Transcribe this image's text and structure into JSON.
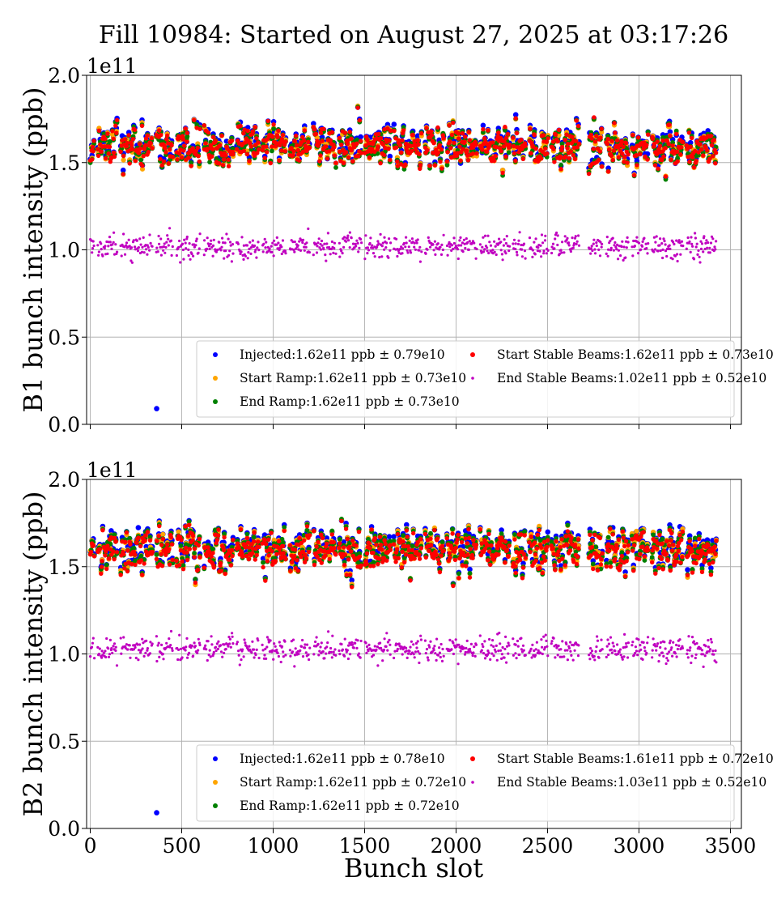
{
  "figure": {
    "title": "Fill 10984: Started on August 27, 2025 at 03:17:26",
    "xlabel": "Bunch slot"
  },
  "colors": {
    "injected": "#0000ff",
    "start_ramp": "#ffa500",
    "end_ramp": "#008000",
    "start_stable": "#ff0000",
    "end_stable": "#c000c0",
    "grid": "#b0b0b0"
  },
  "chart_data": [
    {
      "type": "scatter",
      "id": "b1",
      "ylabel": "B1 bunch intensity (ppb)",
      "yexp": "1e11",
      "xlim": [
        -20,
        3560
      ],
      "ylim": [
        0.0,
        2.0
      ],
      "xticks": [
        0,
        500,
        1000,
        1500,
        2000,
        2500,
        3000,
        3500
      ],
      "yticks": [
        0.0,
        0.5,
        1.0,
        1.5,
        2.0
      ],
      "ytick_labels": [
        "0.0",
        "0.5",
        "1.0",
        "1.5",
        "2.0"
      ],
      "show_xtick_labels": false,
      "grid": true,
      "legend_position": "lower right",
      "trains_x": [
        [
          0,
          20
        ],
        [
          40,
          145
        ],
        [
          165,
          340
        ],
        [
          360,
          450
        ],
        [
          470,
          600
        ],
        [
          620,
          780
        ],
        [
          800,
          920
        ],
        [
          940,
          1070
        ],
        [
          1090,
          1200
        ],
        [
          1220,
          1340
        ],
        [
          1360,
          1480
        ],
        [
          1500,
          1640
        ],
        [
          1660,
          1810
        ],
        [
          1830,
          1930
        ],
        [
          1950,
          2110
        ],
        [
          2130,
          2290
        ],
        [
          2310,
          2380
        ],
        [
          2400,
          2500
        ],
        [
          2520,
          2580
        ],
        [
          2590,
          2670
        ],
        [
          2725,
          2800
        ],
        [
          2820,
          2940
        ],
        [
          2960,
          3050
        ],
        [
          3070,
          3240
        ],
        [
          3260,
          3420
        ]
      ],
      "outliers": {
        "injected": [
          [
            363,
            0.09
          ]
        ]
      },
      "series": [
        {
          "key": "injected",
          "name": "Injected:1.62e11 ppb ± 0.79e10",
          "mean": 1.62,
          "std": 0.079
        },
        {
          "key": "start_ramp",
          "name": "Start Ramp:1.62e11 ppb ± 0.73e10",
          "mean": 1.62,
          "std": 0.073
        },
        {
          "key": "end_ramp",
          "name": "End Ramp:1.62e11 ppb ± 0.73e10",
          "mean": 1.62,
          "std": 0.073
        },
        {
          "key": "start_stable",
          "name": "Start Stable Beams:1.62e11 ppb ± 0.73e10",
          "mean": 1.62,
          "std": 0.073
        },
        {
          "key": "end_stable",
          "name": "End Stable Beams:1.02e11 ppb ± 0.52e10",
          "mean": 1.02,
          "std": 0.052
        }
      ]
    },
    {
      "type": "scatter",
      "id": "b2",
      "ylabel": "B2 bunch intensity (ppb)",
      "yexp": "1e11",
      "xlim": [
        -20,
        3560
      ],
      "ylim": [
        0.0,
        2.0
      ],
      "xticks": [
        0,
        500,
        1000,
        1500,
        2000,
        2500,
        3000,
        3500
      ],
      "xtick_labels": [
        "0",
        "500",
        "1000",
        "1500",
        "2000",
        "2500",
        "3000",
        "3500"
      ],
      "yticks": [
        0.0,
        0.5,
        1.0,
        1.5,
        2.0
      ],
      "ytick_labels": [
        "0.0",
        "0.5",
        "1.0",
        "1.5",
        "2.0"
      ],
      "show_xtick_labels": true,
      "grid": true,
      "legend_position": "lower right",
      "trains_x": [
        [
          0,
          20
        ],
        [
          40,
          145
        ],
        [
          165,
          340
        ],
        [
          360,
          450
        ],
        [
          470,
          600
        ],
        [
          620,
          780
        ],
        [
          800,
          920
        ],
        [
          940,
          1070
        ],
        [
          1090,
          1200
        ],
        [
          1220,
          1340
        ],
        [
          1360,
          1480
        ],
        [
          1500,
          1640
        ],
        [
          1660,
          1810
        ],
        [
          1830,
          1930
        ],
        [
          1950,
          2110
        ],
        [
          2130,
          2290
        ],
        [
          2310,
          2380
        ],
        [
          2400,
          2500
        ],
        [
          2520,
          2580
        ],
        [
          2590,
          2670
        ],
        [
          2725,
          2800
        ],
        [
          2820,
          2940
        ],
        [
          2960,
          3050
        ],
        [
          3070,
          3240
        ],
        [
          3260,
          3420
        ]
      ],
      "outliers": {
        "injected": [
          [
            363,
            0.09
          ]
        ]
      },
      "series": [
        {
          "key": "injected",
          "name": "Injected:1.62e11 ppb ± 0.78e10",
          "mean": 1.62,
          "std": 0.078
        },
        {
          "key": "start_ramp",
          "name": "Start Ramp:1.62e11 ppb ± 0.72e10",
          "mean": 1.62,
          "std": 0.072
        },
        {
          "key": "end_ramp",
          "name": "End Ramp:1.62e11 ppb ± 0.72e10",
          "mean": 1.62,
          "std": 0.072
        },
        {
          "key": "start_stable",
          "name": "Start Stable Beams:1.61e11 ppb ± 0.72e10",
          "mean": 1.61,
          "std": 0.072
        },
        {
          "key": "end_stable",
          "name": "End Stable Beams:1.03e11 ppb ± 0.52e10",
          "mean": 1.03,
          "std": 0.052
        }
      ]
    }
  ]
}
